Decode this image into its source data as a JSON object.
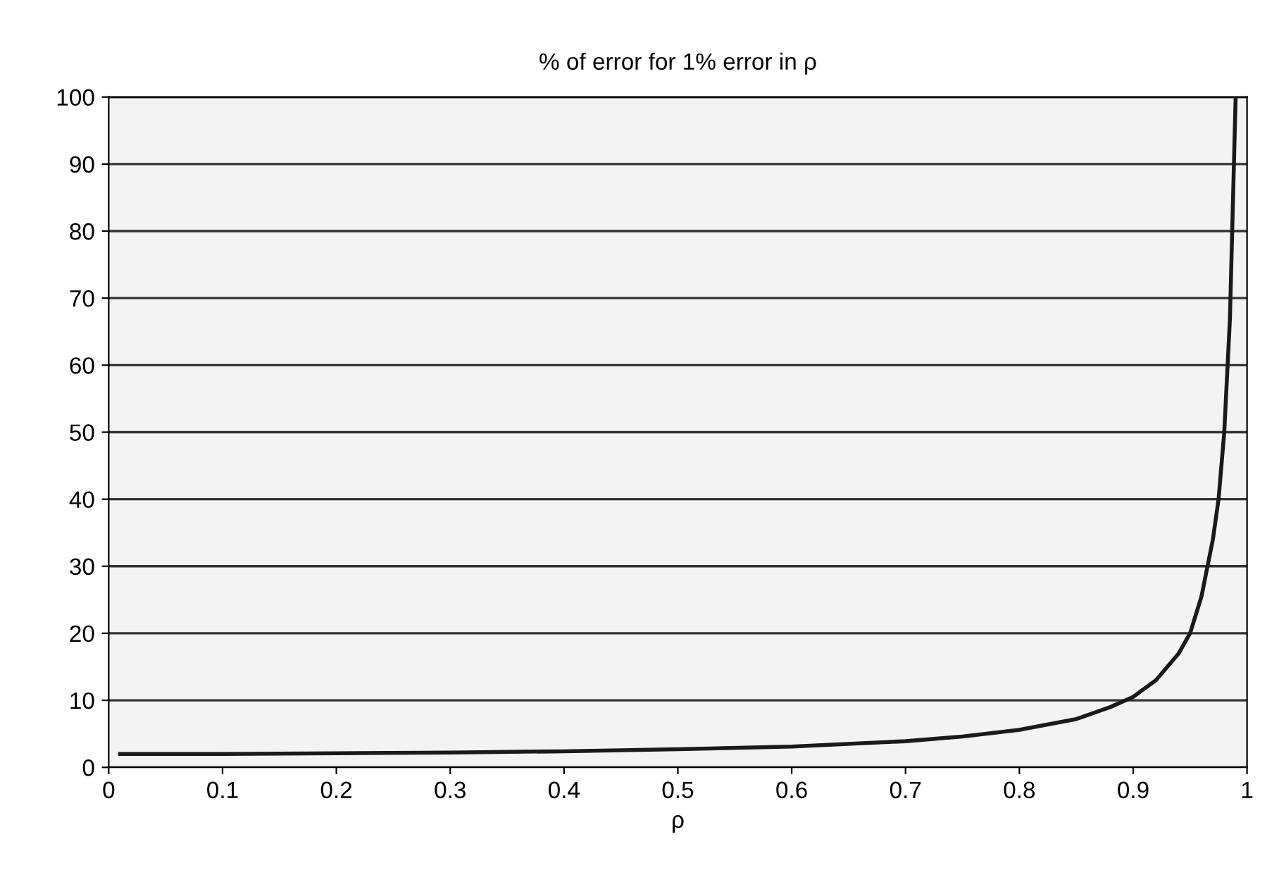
{
  "chart_data": {
    "type": "line",
    "title": "% of error for 1% error in ρ",
    "xlabel": "ρ",
    "series": [
      {
        "color": "#1a1a1a",
        "x": [
          0.01,
          0.1,
          0.2,
          0.3,
          0.4,
          0.5,
          0.6,
          0.7,
          0.75,
          0.8,
          0.85,
          0.88,
          0.9,
          0.92,
          0.94,
          0.95,
          0.96,
          0.97,
          0.975,
          0.98,
          0.985,
          0.99
        ],
        "values": [
          2,
          2,
          2.1,
          2.2,
          2.4,
          2.7,
          3.1,
          3.9,
          4.6,
          5.6,
          7.2,
          9,
          10.5,
          13,
          17,
          20,
          25.5,
          34,
          40,
          50,
          67,
          100
        ]
      }
    ],
    "xlim": [
      0,
      1
    ],
    "ylim": [
      0,
      100
    ],
    "xticks": [
      0,
      0.1,
      0.2,
      0.3,
      0.4,
      0.5,
      0.6,
      0.7,
      0.8,
      0.9,
      1
    ],
    "yticks": [
      0,
      10,
      20,
      30,
      40,
      50,
      60,
      70,
      80,
      90,
      100
    ],
    "grid": "y",
    "marker": "none",
    "line_style": "solid"
  }
}
